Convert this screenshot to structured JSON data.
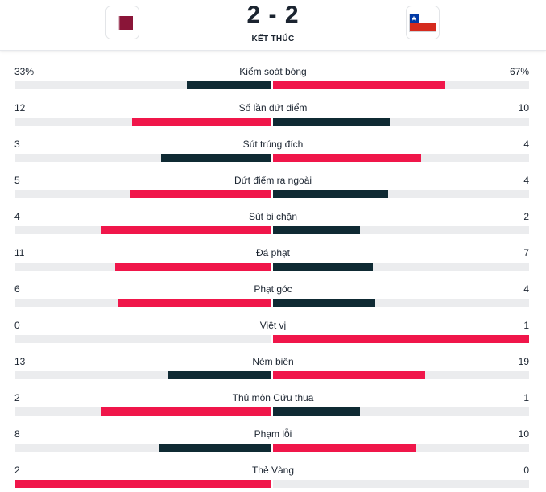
{
  "match": {
    "score": "2 - 2",
    "status": "KẾT THÚC",
    "home_flag_icon": "qatar-flag-icon",
    "away_flag_icon": "chile-flag-icon"
  },
  "colors": {
    "leading": "#f0164a",
    "trailing": "#0f2a33",
    "track": "#ebecee",
    "qatar_maroon": "#8a1538",
    "chile_red": "#d52b1e",
    "chile_blue": "#0039a6"
  },
  "stats": [
    {
      "label": "Kiểm soát bóng",
      "home": "33%",
      "away": "67%",
      "home_share": 0.33,
      "away_share": 0.67,
      "leader": "away"
    },
    {
      "label": "Số lần dứt điểm",
      "home": "12",
      "away": "10",
      "home_share": 0.545,
      "away_share": 0.455,
      "leader": "home"
    },
    {
      "label": "Sút trúng đích",
      "home": "3",
      "away": "4",
      "home_share": 0.43,
      "away_share": 0.58,
      "leader": "away"
    },
    {
      "label": "Dứt điểm ra ngoài",
      "home": "5",
      "away": "4",
      "home_share": 0.55,
      "away_share": 0.45,
      "leader": "home"
    },
    {
      "label": "Sút bị chặn",
      "home": "4",
      "away": "2",
      "home_share": 0.665,
      "away_share": 0.34,
      "leader": "home"
    },
    {
      "label": "Đá phạt",
      "home": "11",
      "away": "7",
      "home_share": 0.61,
      "away_share": 0.39,
      "leader": "home"
    },
    {
      "label": "Phạt góc",
      "home": "6",
      "away": "4",
      "home_share": 0.6,
      "away_share": 0.4,
      "leader": "home"
    },
    {
      "label": "Việt vị",
      "home": "0",
      "away": "1",
      "home_share": 0.0,
      "away_share": 1.0,
      "leader": "away"
    },
    {
      "label": "Ném biên",
      "home": "13",
      "away": "19",
      "home_share": 0.405,
      "away_share": 0.595,
      "leader": "away"
    },
    {
      "label": "Thủ môn Cứu thua",
      "home": "2",
      "away": "1",
      "home_share": 0.665,
      "away_share": 0.34,
      "leader": "home"
    },
    {
      "label": "Phạm lỗi",
      "home": "8",
      "away": "10",
      "home_share": 0.44,
      "away_share": 0.56,
      "leader": "away"
    },
    {
      "label": "Thẻ Vàng",
      "home": "2",
      "away": "0",
      "home_share": 1.0,
      "away_share": 0.0,
      "leader": "home"
    }
  ]
}
